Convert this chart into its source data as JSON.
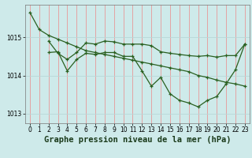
{
  "background_color": "#ceeaea",
  "grid_color_v": "#e89898",
  "grid_color_h": "#b8d8d8",
  "line_color": "#2a6020",
  "xlabel": "Graphe pression niveau de la mer (hPa)",
  "xlabel_fontsize": 7.5,
  "ylim": [
    1012.75,
    1015.85
  ],
  "xlim": [
    -0.5,
    23.5
  ],
  "yticks": [
    1013,
    1014,
    1015
  ],
  "xticks": [
    0,
    1,
    2,
    3,
    4,
    5,
    6,
    7,
    8,
    9,
    10,
    11,
    12,
    13,
    14,
    15,
    16,
    17,
    18,
    19,
    20,
    21,
    22,
    23
  ],
  "series1_x": [
    0,
    1,
    2,
    3,
    4,
    5,
    6,
    7,
    8,
    9,
    10,
    11,
    12,
    13,
    14,
    15,
    16,
    17,
    18,
    19,
    20,
    21,
    22,
    23
  ],
  "series1_y": [
    1015.65,
    1015.2,
    1015.05,
    1014.95,
    1014.85,
    1014.75,
    1014.65,
    1014.6,
    1014.55,
    1014.5,
    1014.45,
    1014.4,
    1014.35,
    1014.3,
    1014.25,
    1014.2,
    1014.15,
    1014.1,
    1014.0,
    1013.95,
    1013.88,
    1013.82,
    1013.78,
    1013.72
  ],
  "series2_x": [
    2,
    3,
    4,
    5,
    6,
    7,
    8,
    9,
    10,
    11,
    12,
    13,
    14,
    15,
    16,
    17,
    18,
    19,
    20,
    21,
    22,
    23
  ],
  "series2_y": [
    1014.9,
    1014.58,
    1014.42,
    1014.6,
    1014.85,
    1014.82,
    1014.9,
    1014.88,
    1014.82,
    1014.82,
    1014.82,
    1014.78,
    1014.62,
    1014.58,
    1014.55,
    1014.52,
    1014.5,
    1014.52,
    1014.48,
    1014.52,
    1014.52,
    1014.82
  ],
  "series3_x": [
    2,
    3,
    4,
    5,
    6,
    7,
    8,
    9,
    10,
    11,
    12,
    13,
    14,
    15,
    16,
    17,
    18,
    19,
    20,
    21,
    22,
    23
  ],
  "series3_y": [
    1014.6,
    1014.62,
    1014.12,
    1014.42,
    1014.58,
    1014.55,
    1014.6,
    1014.6,
    1014.5,
    1014.5,
    1014.12,
    1013.72,
    1013.95,
    1013.52,
    1013.35,
    1013.28,
    1013.18,
    1013.35,
    1013.45,
    1013.78,
    1014.15,
    1014.82
  ],
  "marker_size": 2.5,
  "line_width": 0.9
}
